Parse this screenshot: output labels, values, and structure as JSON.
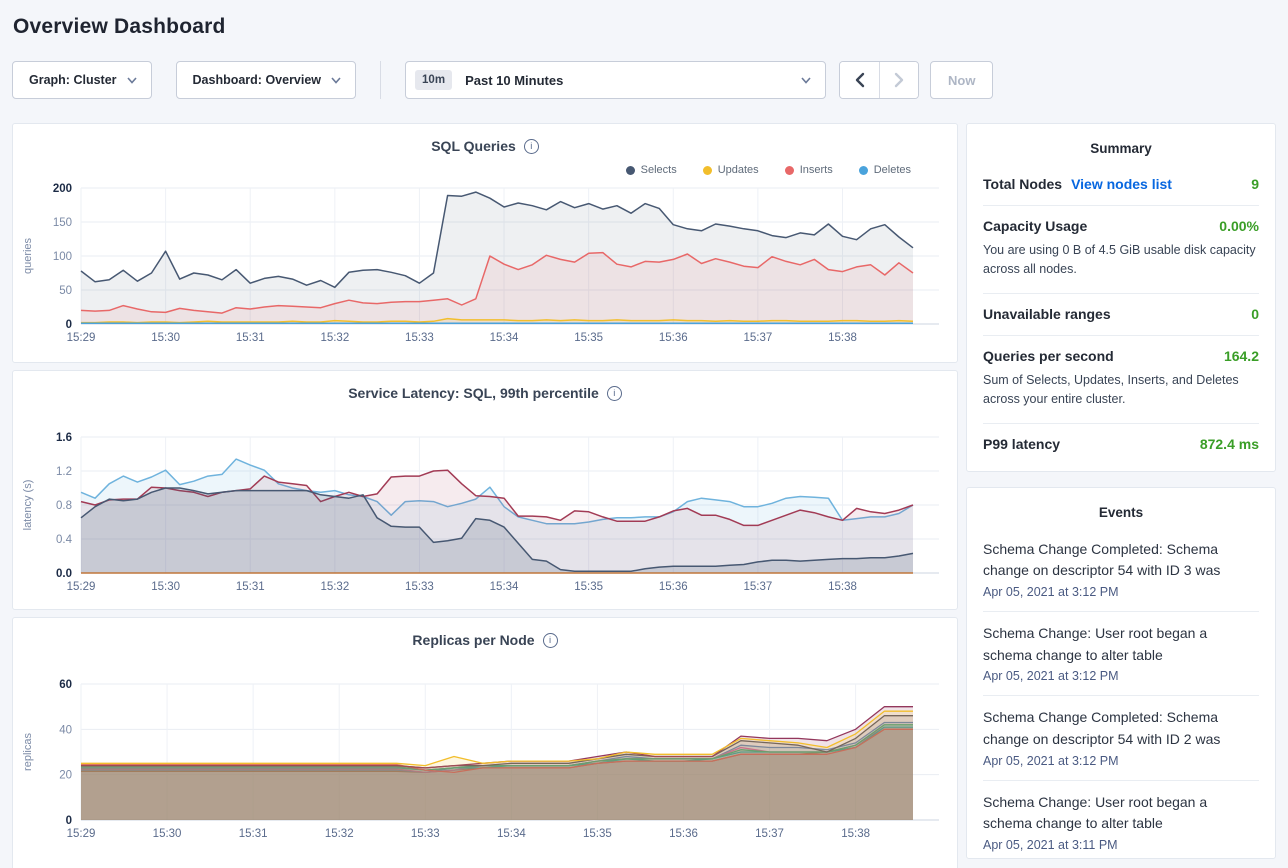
{
  "page": {
    "title": "Overview Dashboard"
  },
  "toolbar": {
    "graph_dropdown": "Graph: Cluster",
    "dashboard_dropdown": "Dashboard: Overview",
    "time_badge": "10m",
    "time_label": "Past 10 Minutes",
    "now_button": "Now"
  },
  "summary": {
    "title": "Summary",
    "value_color": "#3a9e27",
    "link_color": "#0767e0",
    "rows": [
      {
        "label": "Total Nodes",
        "link": "View nodes list",
        "value": "9"
      },
      {
        "label": "Capacity Usage",
        "value": "0.00%",
        "desc": "You are using 0 B of 4.5 GiB usable disk capacity across all nodes."
      },
      {
        "label": "Unavailable ranges",
        "value": "0"
      },
      {
        "label": "Queries per second",
        "value": "164.2",
        "desc": "Sum of Selects, Updates, Inserts, and Deletes across your entire cluster."
      },
      {
        "label": "P99 latency",
        "value": "872.4 ms"
      }
    ]
  },
  "events": {
    "title": "Events",
    "items": [
      {
        "message": "Schema Change Completed: Schema change on descriptor 54 with ID 3 was",
        "timestamp": "Apr 05, 2021 at 3:12 PM"
      },
      {
        "message": "Schema Change: User root began a schema change to alter table",
        "timestamp": "Apr 05, 2021 at 3:12 PM"
      },
      {
        "message": "Schema Change Completed: Schema change on descriptor 54 with ID 2 was",
        "timestamp": "Apr 05, 2021 at 3:12 PM"
      },
      {
        "message": "Schema Change: User root began a schema change to alter table",
        "timestamp": "Apr 05, 2021 at 3:11 PM"
      }
    ]
  },
  "chart_data": [
    {
      "type": "area-line",
      "title": "SQL Queries",
      "ylabel": "queries",
      "ylim": [
        0,
        200
      ],
      "stroke": 1.5,
      "yticks": [
        {
          "v": 0,
          "label": "0",
          "bold": true
        },
        {
          "v": 50,
          "label": "50",
          "bold": false
        },
        {
          "v": 100,
          "label": "100",
          "bold": false
        },
        {
          "v": 150,
          "label": "150",
          "bold": false
        },
        {
          "v": 200,
          "label": "200",
          "bold": true
        }
      ],
      "xticks": {
        "step": 6,
        "labels": [
          "15:29",
          "15:30",
          "15:31",
          "15:32",
          "15:33",
          "15:34",
          "15:35",
          "15:36",
          "15:37",
          "15:38"
        ]
      },
      "legend": [
        {
          "label": "Selects",
          "color": "#475872"
        },
        {
          "label": "Updates",
          "color": "#f2be2c"
        },
        {
          "label": "Inserts",
          "color": "#e86868"
        },
        {
          "label": "Deletes",
          "color": "#4aa3dc"
        }
      ],
      "series": [
        {
          "name": "Selects",
          "color": "#475872",
          "fill_opacity": 0.09,
          "values": [
            78,
            62,
            65,
            79,
            63,
            75,
            107,
            66,
            75,
            72,
            65,
            80,
            60,
            67,
            70,
            66,
            57,
            64,
            54,
            76,
            79,
            80,
            76,
            71,
            60,
            75,
            189,
            188,
            194,
            185,
            172,
            178,
            174,
            168,
            180,
            171,
            177,
            169,
            174,
            163,
            177,
            170,
            146,
            140,
            137,
            147,
            144,
            140,
            137,
            130,
            127,
            134,
            131,
            147,
            129,
            124,
            140,
            146,
            128,
            112
          ]
        },
        {
          "name": "Inserts",
          "color": "#e86868",
          "fill_opacity": 0.1,
          "values": [
            20,
            19,
            20,
            27,
            22,
            18,
            17,
            23,
            20,
            18,
            16,
            24,
            22,
            25,
            27,
            26,
            25,
            24,
            30,
            35,
            31,
            30,
            32,
            33,
            33,
            35,
            37,
            28,
            37,
            100,
            88,
            80,
            87,
            101,
            95,
            91,
            104,
            105,
            88,
            84,
            92,
            91,
            95,
            103,
            89,
            96,
            91,
            85,
            83,
            99,
            92,
            87,
            95,
            80,
            77,
            84,
            87,
            72,
            90,
            75
          ]
        },
        {
          "name": "Updates",
          "color": "#f2be2c",
          "fill_opacity": 0.12,
          "values": [
            2,
            2,
            3,
            3,
            2,
            3,
            3,
            2,
            3,
            4,
            3,
            3,
            3,
            3,
            3,
            4,
            3,
            3,
            5,
            4,
            3,
            3,
            4,
            4,
            3,
            4,
            8,
            6,
            6,
            6,
            6,
            5,
            5,
            6,
            5,
            6,
            5,
            5,
            6,
            5,
            5,
            5,
            6,
            5,
            5,
            4,
            5,
            4,
            4,
            5,
            5,
            4,
            4,
            4,
            5,
            5,
            4,
            4,
            5,
            4
          ]
        },
        {
          "name": "Deletes",
          "color": "#4aa3dc",
          "fill_opacity": 0.15,
          "values": [
            1,
            1,
            1,
            1,
            1,
            1,
            1,
            1,
            1,
            1,
            1,
            1,
            1,
            1,
            1,
            1,
            1,
            1,
            1,
            1,
            1,
            1,
            1,
            1,
            1,
            1,
            1,
            1,
            1,
            1,
            1,
            1,
            1,
            1,
            1,
            1,
            1,
            1,
            1,
            1,
            1,
            1,
            1,
            1,
            1,
            1,
            1,
            1,
            1,
            1,
            1,
            1,
            1,
            1,
            1,
            1,
            1,
            1,
            1,
            1
          ]
        }
      ]
    },
    {
      "type": "area-line",
      "title": "Service Latency: SQL, 99th percentile",
      "ylabel": "latency (s)",
      "ylim": [
        0,
        1.6
      ],
      "stroke": 1.5,
      "yticks": [
        {
          "v": 0,
          "label": "0.0",
          "bold": true
        },
        {
          "v": 0.4,
          "label": "0.4",
          "bold": false
        },
        {
          "v": 0.8,
          "label": "0.8",
          "bold": false
        },
        {
          "v": 1.2,
          "label": "1.2",
          "bold": false
        },
        {
          "v": 1.6,
          "label": "1.6",
          "bold": true
        }
      ],
      "xticks": {
        "step": 6,
        "labels": [
          "15:29",
          "15:30",
          "15:31",
          "15:32",
          "15:33",
          "15:34",
          "15:35",
          "15:36",
          "15:37",
          "15:38"
        ]
      },
      "legend": [],
      "series": [
        {
          "name": "p99-blue",
          "color": "#6fb3dd",
          "fill_opacity": 0.12,
          "values": [
            0.95,
            0.88,
            1.05,
            1.14,
            1.07,
            1.13,
            1.21,
            1.04,
            1.08,
            1.14,
            1.16,
            1.34,
            1.27,
            1.21,
            1.05,
            1.0,
            0.97,
            0.95,
            0.97,
            0.92,
            0.9,
            0.84,
            0.68,
            0.84,
            0.85,
            0.84,
            0.78,
            0.82,
            0.87,
            1.01,
            0.78,
            0.66,
            0.62,
            0.58,
            0.58,
            0.58,
            0.6,
            0.63,
            0.65,
            0.65,
            0.66,
            0.66,
            0.72,
            0.84,
            0.88,
            0.86,
            0.84,
            0.78,
            0.78,
            0.82,
            0.88,
            0.9,
            0.89,
            0.88,
            0.62,
            0.64,
            0.66,
            0.66,
            0.7,
            0.8
          ]
        },
        {
          "name": "p99-maroon",
          "color": "#a23b55",
          "fill_opacity": 0.1,
          "values": [
            0.84,
            0.8,
            0.86,
            0.87,
            0.87,
            1.01,
            1.0,
            0.97,
            0.95,
            0.9,
            0.95,
            0.97,
            0.99,
            1.14,
            1.07,
            1.05,
            1.03,
            0.84,
            0.9,
            0.95,
            0.9,
            0.93,
            1.13,
            1.14,
            1.14,
            1.2,
            1.21,
            1.05,
            0.91,
            0.9,
            0.88,
            0.67,
            0.67,
            0.66,
            0.62,
            0.73,
            0.72,
            0.66,
            0.61,
            0.61,
            0.61,
            0.66,
            0.73,
            0.76,
            0.68,
            0.68,
            0.63,
            0.56,
            0.56,
            0.62,
            0.68,
            0.74,
            0.71,
            0.66,
            0.62,
            0.76,
            0.72,
            0.7,
            0.74,
            0.8
          ]
        },
        {
          "name": "p99-navy",
          "color": "#475872",
          "fill_opacity": 0.18,
          "values": [
            0.65,
            0.78,
            0.87,
            0.85,
            0.87,
            0.95,
            1.0,
            1.0,
            0.97,
            0.93,
            0.95,
            0.97,
            0.97,
            0.97,
            0.97,
            0.97,
            0.97,
            0.92,
            0.9,
            0.88,
            0.92,
            0.65,
            0.55,
            0.54,
            0.54,
            0.36,
            0.38,
            0.41,
            0.64,
            0.62,
            0.54,
            0.35,
            0.16,
            0.14,
            0.04,
            0.02,
            0.02,
            0.02,
            0.02,
            0.02,
            0.05,
            0.07,
            0.08,
            0.08,
            0.08,
            0.08,
            0.09,
            0.1,
            0.13,
            0.15,
            0.15,
            0.14,
            0.15,
            0.16,
            0.17,
            0.17,
            0.18,
            0.18,
            0.2,
            0.23
          ]
        },
        {
          "name": "p99-orange",
          "color": "#c0773b",
          "fill_opacity": 0,
          "values": [
            0,
            0,
            0,
            0,
            0,
            0,
            0,
            0,
            0,
            0,
            0,
            0,
            0,
            0,
            0,
            0,
            0,
            0,
            0,
            0,
            0,
            0,
            0,
            0,
            0,
            0,
            0,
            0,
            0,
            0,
            0,
            0,
            0,
            0,
            0,
            0,
            0,
            0,
            0,
            0,
            0,
            0,
            0,
            0,
            0,
            0,
            0,
            0,
            0,
            0,
            0,
            0,
            0,
            0,
            0,
            0,
            0,
            0,
            0,
            0
          ]
        }
      ]
    },
    {
      "type": "area-line",
      "title": "Replicas per Node",
      "ylabel": "replicas",
      "ylim": [
        0,
        60
      ],
      "stroke": 1.3,
      "yticks": [
        {
          "v": 0,
          "label": "0",
          "bold": true
        },
        {
          "v": 20,
          "label": "20",
          "bold": false
        },
        {
          "v": 40,
          "label": "40",
          "bold": false
        },
        {
          "v": 60,
          "label": "60",
          "bold": true
        }
      ],
      "xticks": {
        "step": 3,
        "labels": [
          "15:29",
          "15:30",
          "15:31",
          "15:32",
          "15:33",
          "15:34",
          "15:35",
          "15:36",
          "15:37",
          "15:38"
        ]
      },
      "legend": [],
      "series": [
        {
          "name": "node-orange",
          "color": "#c0773b",
          "fill_opacity": 0.14,
          "values": [
            21.5,
            21.5,
            21.5,
            21.5,
            21.5,
            21.5,
            21.5,
            21.5,
            21.5,
            21.5,
            21.5,
            21.5,
            21,
            22,
            23,
            23,
            23,
            23,
            25,
            26,
            26,
            26,
            26,
            29,
            29,
            29,
            30,
            32,
            40,
            40
          ]
        },
        {
          "name": "node-blue",
          "color": "#6693c9",
          "fill_opacity": 0.14,
          "values": [
            22,
            22,
            22,
            22,
            22,
            22,
            22,
            22,
            22,
            22,
            22,
            22,
            21,
            23,
            24,
            24,
            24,
            24,
            26,
            28,
            27,
            27,
            27,
            33,
            32,
            32,
            31,
            34,
            43,
            43
          ]
        },
        {
          "name": "node-pink",
          "color": "#e071ae",
          "fill_opacity": 0.14,
          "values": [
            22.5,
            22.5,
            22.5,
            22.5,
            22.5,
            22.5,
            22.5,
            22.5,
            22.5,
            22.5,
            22.5,
            22.5,
            21,
            22,
            24,
            24,
            24,
            24,
            26,
            27,
            27,
            27,
            27,
            32,
            30,
            30,
            30,
            33,
            41,
            41
          ]
        },
        {
          "name": "node-teal",
          "color": "#2fb5b0",
          "fill_opacity": 0.14,
          "values": [
            23,
            23,
            23,
            23,
            23,
            23,
            23,
            23,
            23,
            23,
            23,
            23,
            22,
            23,
            23,
            24,
            24,
            24,
            25,
            27,
            26,
            26,
            27,
            30,
            30,
            30,
            30,
            32,
            41,
            41
          ]
        },
        {
          "name": "node-green",
          "color": "#47b881",
          "fill_opacity": 0.14,
          "values": [
            23.5,
            23.5,
            23.5,
            23.5,
            23.5,
            23.5,
            23.5,
            23.5,
            23.5,
            23.5,
            23.5,
            23.5,
            22,
            23,
            24,
            24,
            24,
            24,
            26,
            27,
            27,
            27,
            27,
            31,
            30,
            30,
            30,
            33,
            42,
            42
          ]
        },
        {
          "name": "node-red",
          "color": "#dd6b66",
          "fill_opacity": 0.14,
          "values": [
            24.5,
            24.5,
            24.5,
            24.5,
            24.5,
            24.5,
            24.5,
            24.5,
            24.5,
            24.5,
            24.5,
            24.5,
            22,
            21,
            23,
            23,
            23,
            23,
            25,
            26,
            26,
            26,
            26,
            29,
            29,
            29,
            29,
            32,
            40,
            40
          ]
        },
        {
          "name": "node-gray",
          "color": "#5a5e66",
          "fill_opacity": 0.14,
          "values": [
            24,
            24,
            24,
            24,
            24,
            24,
            24,
            24,
            24,
            24,
            24,
            24,
            23,
            24,
            24,
            25,
            25,
            25,
            27,
            29,
            28,
            28,
            28,
            35,
            34,
            33,
            30,
            36,
            46,
            46
          ]
        },
        {
          "name": "node-purple",
          "color": "#93375c",
          "fill_opacity": 0.14,
          "values": [
            24,
            24,
            24,
            24,
            24,
            24,
            24,
            24,
            24,
            24,
            24,
            24,
            23,
            24,
            25,
            26,
            26,
            26,
            28,
            30,
            28,
            28,
            28,
            37,
            36,
            36,
            35,
            40,
            50,
            50
          ]
        },
        {
          "name": "node-yellow",
          "color": "#f2be2c",
          "fill_opacity": 0.14,
          "values": [
            25,
            25,
            25,
            25,
            25,
            25,
            25,
            25,
            25,
            25,
            25,
            25,
            24,
            28,
            25,
            26,
            26,
            26,
            27,
            30,
            29,
            29,
            29,
            36,
            35,
            34,
            32,
            38,
            48,
            48
          ]
        }
      ]
    }
  ]
}
